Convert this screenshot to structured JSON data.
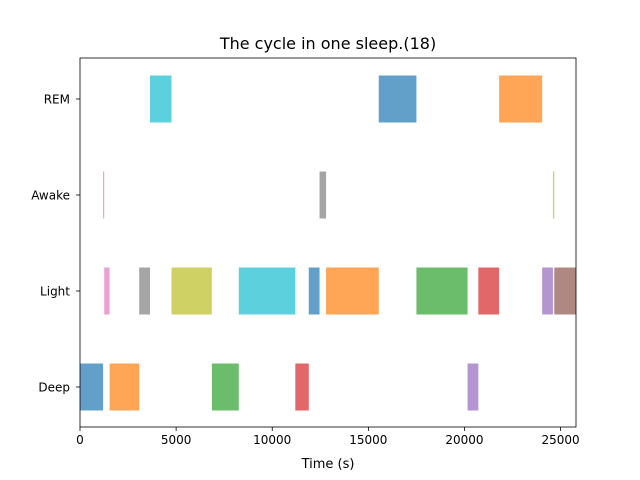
{
  "chart_data": {
    "type": "bar",
    "orientation": "horizontal-segments",
    "title": "The cycle in one sleep.(18)",
    "xlabel": "Time (s)",
    "ylabel": "",
    "xlim": [
      0,
      25800
    ],
    "xticks": [
      0,
      5000,
      10000,
      15000,
      20000,
      25000
    ],
    "xtick_labels": [
      "0",
      "5000",
      "10000",
      "15000",
      "20000",
      "25000"
    ],
    "categories": [
      "Deep",
      "Light",
      "Awake",
      "REM"
    ],
    "grid": false,
    "legend": "none",
    "segments": [
      {
        "stage": "Deep",
        "start": 0,
        "end": 1200,
        "color": "#1f77b4"
      },
      {
        "stage": "Awake",
        "start": 1200,
        "end": 1260,
        "color": "#e377c2"
      },
      {
        "stage": "Light",
        "start": 1260,
        "end": 1540,
        "color": "#e377c2"
      },
      {
        "stage": "Deep",
        "start": 1540,
        "end": 3080,
        "color": "#ff7f0e"
      },
      {
        "stage": "Light",
        "start": 3080,
        "end": 3640,
        "color": "#7f7f7f"
      },
      {
        "stage": "REM",
        "start": 3640,
        "end": 4760,
        "color": "#17becf"
      },
      {
        "stage": "Light",
        "start": 4760,
        "end": 6860,
        "color": "#bcbd22"
      },
      {
        "stage": "Deep",
        "start": 6860,
        "end": 8260,
        "color": "#2ca02c"
      },
      {
        "stage": "Light",
        "start": 8260,
        "end": 11200,
        "color": "#17becf"
      },
      {
        "stage": "Deep",
        "start": 11200,
        "end": 11900,
        "color": "#d62728"
      },
      {
        "stage": "Light",
        "start": 11900,
        "end": 12460,
        "color": "#1f77b4"
      },
      {
        "stage": "Awake",
        "start": 12460,
        "end": 12800,
        "color": "#7f7f7f"
      },
      {
        "stage": "Light",
        "start": 12800,
        "end": 15540,
        "color": "#ff7f0e"
      },
      {
        "stage": "REM",
        "start": 15540,
        "end": 17500,
        "color": "#1f77b4"
      },
      {
        "stage": "Light",
        "start": 17500,
        "end": 20160,
        "color": "#2ca02c"
      },
      {
        "stage": "Deep",
        "start": 20160,
        "end": 20720,
        "color": "#9467bd"
      },
      {
        "stage": "Light",
        "start": 20720,
        "end": 21800,
        "color": "#d62728"
      },
      {
        "stage": "REM",
        "start": 21800,
        "end": 24040,
        "color": "#ff7f0e"
      },
      {
        "stage": "Light",
        "start": 24040,
        "end": 24600,
        "color": "#9467bd"
      },
      {
        "stage": "Awake",
        "start": 24600,
        "end": 24670,
        "color": "#bcbd22"
      },
      {
        "stage": "Light",
        "start": 24670,
        "end": 25800,
        "color": "#8c564b"
      }
    ]
  }
}
